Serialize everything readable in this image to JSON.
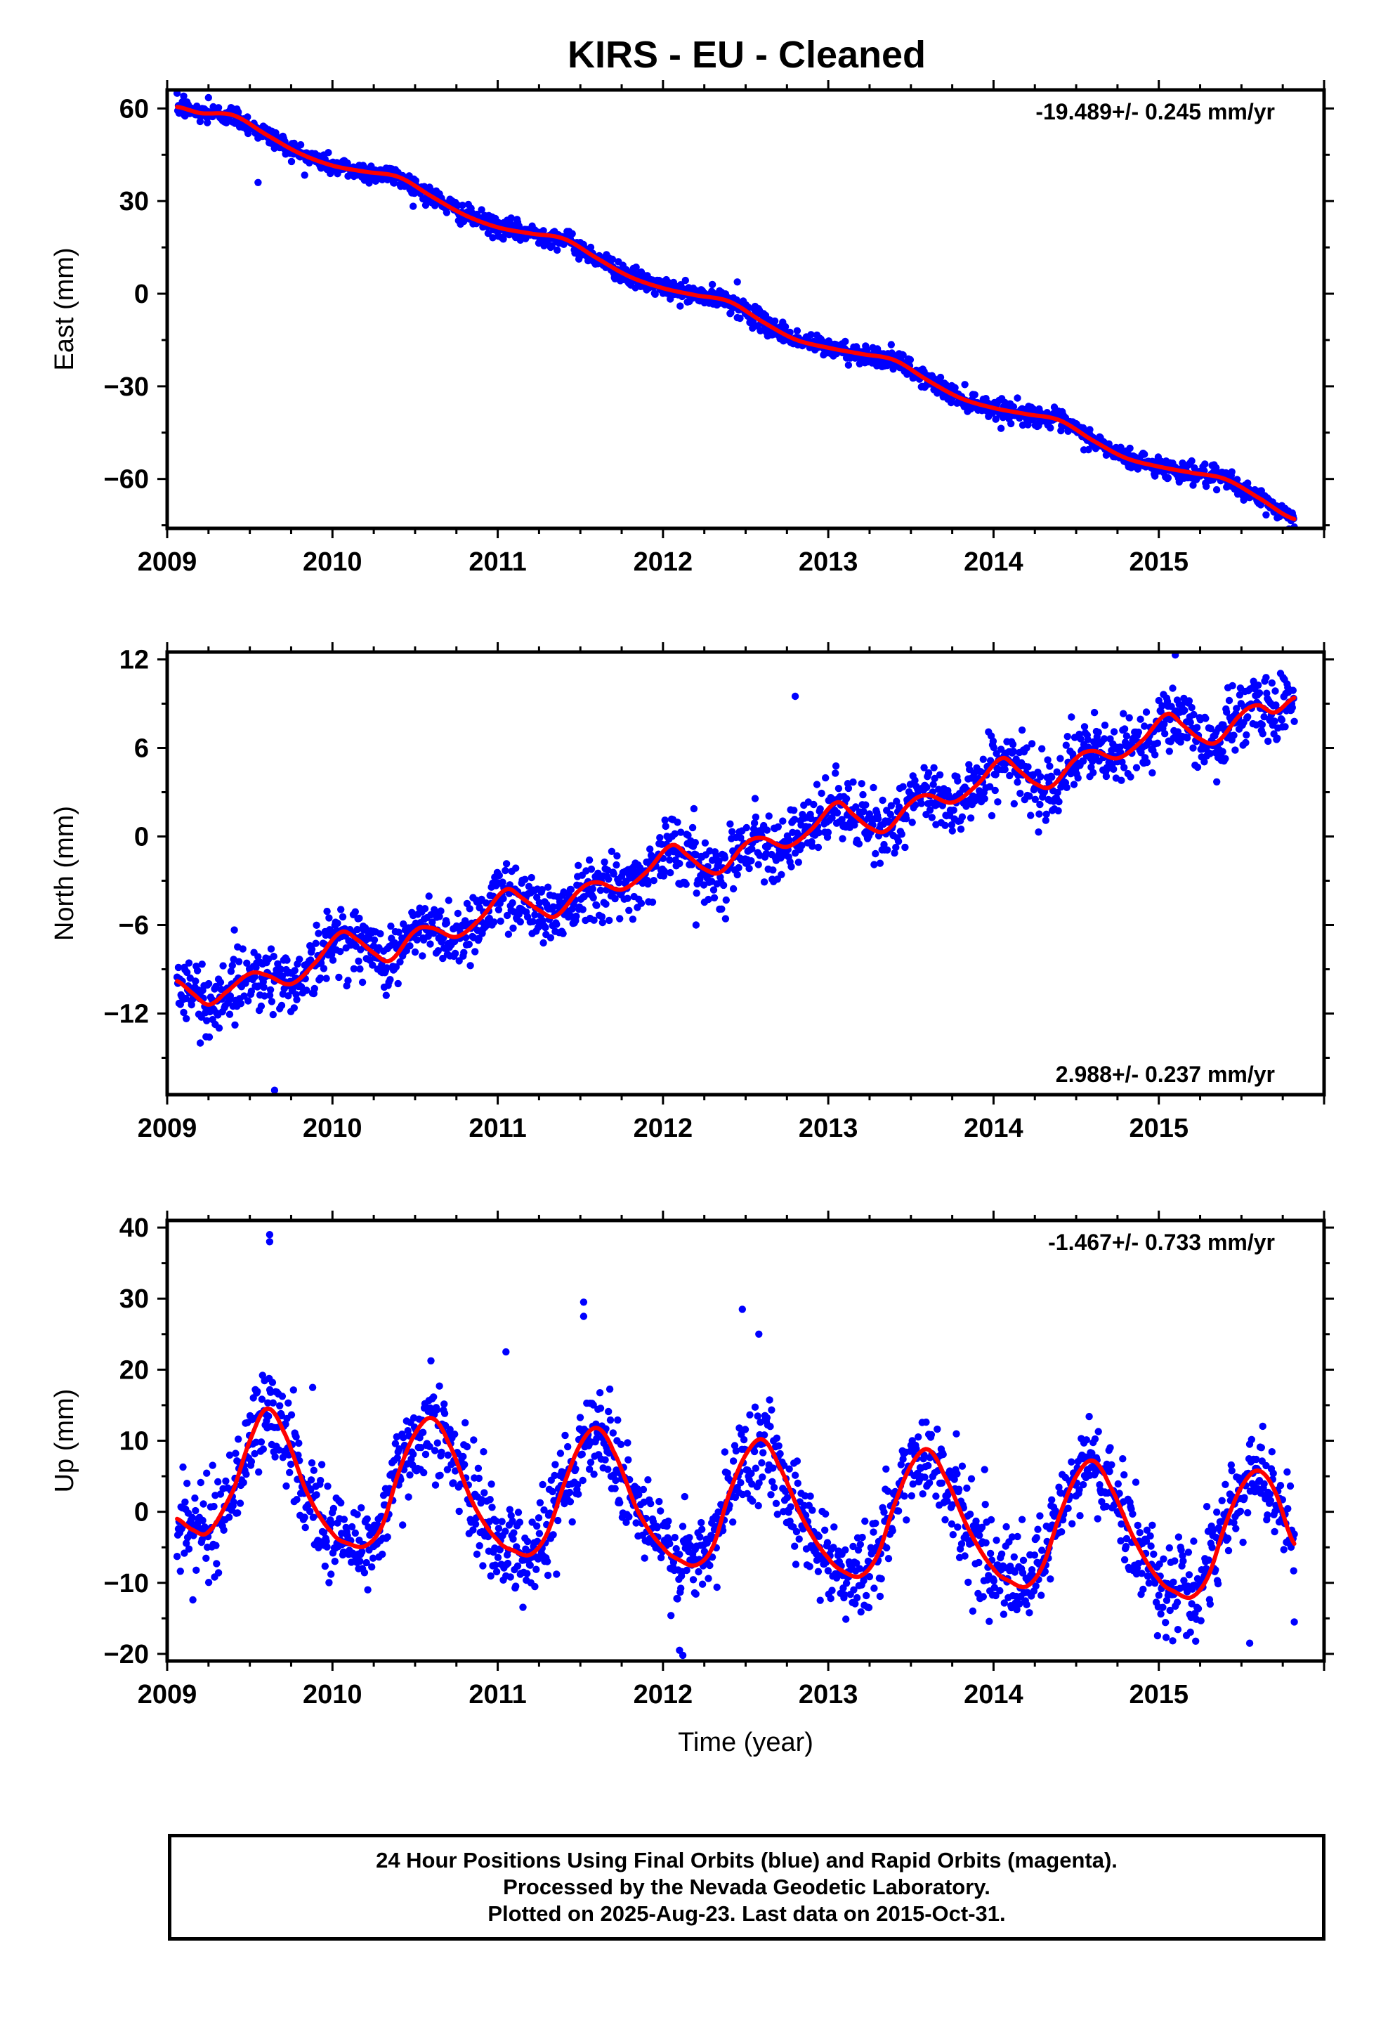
{
  "title": "KIRS  - EU - Cleaned",
  "footer": {
    "line1": "24 Hour Positions Using Final Orbits (blue) and Rapid Orbits (magenta).",
    "line2": "Processed by the Nevada Geodetic Laboratory.",
    "line3": "Plotted on 2025-Aug-23. Last data on 2015-Oct-31."
  },
  "colors": {
    "points": "#0000ff",
    "fit": "#ff0000",
    "frame": "#000000"
  },
  "chart_data": [
    {
      "type": "scatter",
      "ylabel": "East (mm)",
      "xlabel": "",
      "xlim": [
        2009.0,
        2016.0
      ],
      "ylim": [
        -76,
        66
      ],
      "xticks": [
        2009,
        2010,
        2011,
        2012,
        2013,
        2014,
        2015
      ],
      "yticks": [
        -60,
        -30,
        0,
        30,
        60
      ],
      "rate_text": "-19.489+/- 0.245 mm/yr",
      "rate_position": "top-right",
      "fit_line": {
        "x": [
          2009.06,
          2009.2,
          2009.4,
          2009.6,
          2009.8,
          2010.0,
          2010.2,
          2010.4,
          2010.6,
          2010.8,
          2011.0,
          2011.2,
          2011.4,
          2011.6,
          2011.8,
          2012.0,
          2012.2,
          2012.4,
          2012.6,
          2012.8,
          2013.0,
          2013.2,
          2013.4,
          2013.6,
          2013.8,
          2014.0,
          2014.2,
          2014.4,
          2014.6,
          2014.8,
          2015.0,
          2015.2,
          2015.4,
          2015.6,
          2015.82
        ],
        "y": [
          60.5,
          58.5,
          57.8,
          51.5,
          45.5,
          41.5,
          39.5,
          37.8,
          31.5,
          25.5,
          21.5,
          19.5,
          17.8,
          11.5,
          5.5,
          1.8,
          -0.5,
          -2.5,
          -9.0,
          -14.8,
          -17.5,
          -19.5,
          -21.5,
          -28.0,
          -33.8,
          -37.0,
          -39.0,
          -41.0,
          -47.5,
          -53.2,
          -56.0,
          -58.0,
          -60.0,
          -66.0,
          -73.0
        ]
      },
      "scatter": {
        "noise": 1.6,
        "n": 1700,
        "outliers": [
          [
            2009.1,
            64
          ],
          [
            2009.55,
            36
          ],
          [
            2009.25,
            63.5
          ],
          [
            2012.45,
            3.8
          ],
          [
            2015.35,
            -63.5
          ]
        ]
      }
    },
    {
      "type": "scatter",
      "ylabel": "North (mm)",
      "xlabel": "",
      "xlim": [
        2009.0,
        2016.0
      ],
      "ylim": [
        -17.5,
        12.5
      ],
      "xticks": [
        2009,
        2010,
        2011,
        2012,
        2013,
        2014,
        2015
      ],
      "yticks": [
        -12,
        -6,
        0,
        6,
        12
      ],
      "rate_text": "2.988+/- 0.237 mm/yr",
      "rate_position": "bottom-right",
      "fit_line": {
        "x": [
          2009.06,
          2009.15,
          2009.25,
          2009.35,
          2009.5,
          2009.6,
          2009.75,
          2009.9,
          2010.05,
          2010.15,
          2010.25,
          2010.35,
          2010.5,
          2010.6,
          2010.75,
          2010.9,
          2011.05,
          2011.15,
          2011.25,
          2011.35,
          2011.5,
          2011.6,
          2011.75,
          2011.9,
          2012.05,
          2012.15,
          2012.25,
          2012.35,
          2012.5,
          2012.6,
          2012.75,
          2012.9,
          2013.05,
          2013.15,
          2013.25,
          2013.35,
          2013.5,
          2013.6,
          2013.75,
          2013.9,
          2014.05,
          2014.15,
          2014.25,
          2014.35,
          2014.5,
          2014.6,
          2014.75,
          2014.9,
          2015.05,
          2015.15,
          2015.25,
          2015.35,
          2015.5,
          2015.6,
          2015.7,
          2015.82
        ],
        "y": [
          -9.8,
          -10.6,
          -11.4,
          -10.6,
          -9.3,
          -9.4,
          -10.0,
          -8.5,
          -6.5,
          -7.0,
          -7.9,
          -8.4,
          -6.4,
          -6.2,
          -6.8,
          -5.5,
          -3.6,
          -4.2,
          -5.0,
          -5.4,
          -3.6,
          -3.1,
          -3.6,
          -2.4,
          -0.6,
          -1.3,
          -2.2,
          -2.4,
          -0.5,
          -0.1,
          -0.7,
          0.5,
          2.3,
          1.5,
          0.6,
          0.4,
          2.3,
          2.8,
          2.3,
          3.5,
          5.3,
          4.5,
          3.6,
          3.4,
          5.3,
          5.8,
          5.3,
          6.5,
          8.3,
          7.5,
          6.6,
          6.4,
          8.3,
          8.9,
          8.4,
          9.4
        ]
      },
      "scatter": {
        "noise": 1.1,
        "n": 1700,
        "outliers": [
          [
            2009.65,
            -17.2
          ],
          [
            2012.8,
            9.5
          ],
          [
            2015.1,
            12.3
          ],
          [
            2012.2,
            -6.0
          ],
          [
            2009.2,
            -14.0
          ]
        ]
      }
    },
    {
      "type": "scatter",
      "ylabel": "Up (mm)",
      "xlabel": "Time (year)",
      "xlim": [
        2009.0,
        2016.0
      ],
      "ylim": [
        -21,
        41
      ],
      "xticks": [
        2009,
        2010,
        2011,
        2012,
        2013,
        2014,
        2015
      ],
      "yticks": [
        -20,
        -10,
        0,
        10,
        20,
        30,
        40
      ],
      "rate_text": "-1.467+/- 0.733 mm/yr",
      "rate_position": "top-right",
      "fit_line": {
        "x": [
          2009.06,
          2009.15,
          2009.25,
          2009.4,
          2009.5,
          2009.6,
          2009.7,
          2009.85,
          2010.0,
          2010.1,
          2010.2,
          2010.3,
          2010.4,
          2010.5,
          2010.6,
          2010.7,
          2010.85,
          2011.0,
          2011.1,
          2011.2,
          2011.3,
          2011.4,
          2011.5,
          2011.6,
          2011.7,
          2011.85,
          2012.0,
          2012.1,
          2012.2,
          2012.3,
          2012.4,
          2012.5,
          2012.6,
          2012.7,
          2012.85,
          2013.0,
          2013.1,
          2013.2,
          2013.3,
          2013.4,
          2013.5,
          2013.6,
          2013.7,
          2013.85,
          2014.0,
          2014.1,
          2014.2,
          2014.3,
          2014.4,
          2014.5,
          2014.6,
          2014.7,
          2014.85,
          2015.0,
          2015.1,
          2015.2,
          2015.3,
          2015.4,
          2015.5,
          2015.6,
          2015.7,
          2015.82
        ],
        "y": [
          -1.0,
          -2.5,
          -2.8,
          3.0,
          10.0,
          14.5,
          11.5,
          2.5,
          -3.0,
          -4.5,
          -4.8,
          -2.0,
          5.5,
          11.0,
          13.2,
          9.8,
          1.2,
          -4.0,
          -5.5,
          -6.0,
          -3.0,
          3.8,
          9.5,
          11.8,
          8.5,
          0.0,
          -5.0,
          -6.8,
          -7.5,
          -5.0,
          2.5,
          8.0,
          10.2,
          6.5,
          -1.2,
          -6.5,
          -8.5,
          -9.0,
          -6.0,
          1.0,
          6.5,
          8.8,
          5.2,
          -2.5,
          -8.0,
          -9.8,
          -10.5,
          -7.5,
          -0.5,
          5.0,
          7.2,
          3.8,
          -3.8,
          -9.5,
          -11.3,
          -12.0,
          -9.0,
          -2.0,
          3.5,
          5.8,
          3.0,
          -4.5
        ]
      },
      "scatter": {
        "noise": 3.3,
        "n": 1700,
        "outliers": [
          [
            2009.62,
            39
          ],
          [
            2009.62,
            38
          ],
          [
            2011.52,
            29.5
          ],
          [
            2011.52,
            27.5
          ],
          [
            2012.48,
            28.5
          ],
          [
            2012.58,
            25
          ],
          [
            2011.05,
            22.5
          ],
          [
            2009.88,
            17.5
          ],
          [
            2012.1,
            -19.5
          ],
          [
            2012.12,
            -20.2
          ],
          [
            2015.55,
            -18.5
          ],
          [
            2015.82,
            -15.5
          ]
        ]
      }
    }
  ]
}
